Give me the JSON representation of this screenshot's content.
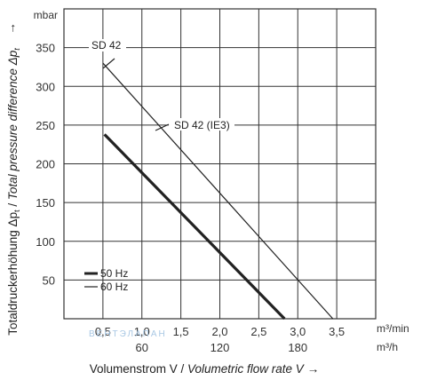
{
  "chart_data": {
    "type": "line",
    "y_unit": "mbar",
    "y_arrow": "→",
    "ylabel_de": "Totaldruckerhöhung Δp",
    "ylabel_en": "Total pressure difference Δp",
    "ylabel_sub": "t",
    "ylabel_sep": " / ",
    "xlabel_de": "Volumenstrom V",
    "xlabel_en": "Volumetric flow rate V",
    "xlabel_sep": " / ",
    "x_arrow": "→",
    "x_unit_primary": "m³/min",
    "x_unit_secondary": "m³/h",
    "xlim": [
      0,
      4.0
    ],
    "ylim": [
      0,
      400
    ],
    "grid": true,
    "x_ticks": [
      "0,5",
      "1,0",
      "1,5",
      "2,0",
      "2,5",
      "3,0",
      "3,5"
    ],
    "x_tick_values": [
      0.5,
      1.0,
      1.5,
      2.0,
      2.5,
      3.0,
      3.5
    ],
    "x2_ticks": [
      "60",
      "120",
      "180"
    ],
    "x2_tick_values": [
      1.0,
      2.0,
      3.0
    ],
    "y_ticks": [
      "50",
      "100",
      "150",
      "200",
      "250",
      "300",
      "350"
    ],
    "y_tick_values": [
      50,
      100,
      150,
      200,
      250,
      300,
      350
    ],
    "series": [
      {
        "name": "SD 42",
        "color": "#222222",
        "style": "thin",
        "points": [
          [
            0.5,
            330
          ],
          [
            3.45,
            0
          ]
        ]
      },
      {
        "name": "SD 42 (IE3)",
        "color": "#222222",
        "style": "thin",
        "points": [
          [
            0.5,
            330
          ],
          [
            3.45,
            0
          ]
        ]
      },
      {
        "name": "50 Hz",
        "color": "#222222",
        "style": "thick",
        "points": [
          [
            0.52,
            238
          ],
          [
            2.83,
            0
          ]
        ]
      }
    ],
    "annotations": [
      {
        "text": "SD 42",
        "at": [
          0.62,
          335
        ]
      },
      {
        "text": "SD 42 (IE3)",
        "at": [
          1.25,
          250
        ]
      }
    ],
    "legend": [
      {
        "label": "50 Hz",
        "style": "thick"
      },
      {
        "label": "60 Hz",
        "style": "thin"
      }
    ],
    "legend_position": "bottom-left",
    "watermark": "ВЕНТЭЛАПАН"
  }
}
